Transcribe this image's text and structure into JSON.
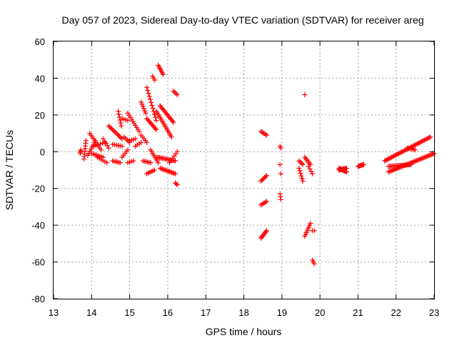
{
  "chart_data": {
    "type": "scatter",
    "title": "Day 057 of 2023, Sidereal Day-to-day VTEC variation (SDTVAR) for receiver areg",
    "xlabel": "GPS time / hours",
    "ylabel": "SDTVAR / TECUs",
    "xlim": [
      13,
      23
    ],
    "ylim": [
      -80,
      60
    ],
    "xticks": [
      "13",
      "14",
      "15",
      "16",
      "17",
      "18",
      "19",
      "20",
      "21",
      "22",
      "23"
    ],
    "yticks": [
      "60",
      "40",
      "20",
      "0",
      "-20",
      "-40",
      "-60",
      "-80"
    ],
    "grid": true,
    "marker": "plus",
    "color": "#ff0000",
    "series": [
      {
        "name": "SDTVAR",
        "segments": [
          {
            "x0": 13.7,
            "y0": -1,
            "x1": 13.72,
            "y1": 1,
            "n": 4
          },
          {
            "x0": 13.8,
            "y0": -4,
            "x1": 13.85,
            "y1": 6,
            "n": 8
          },
          {
            "x0": 13.9,
            "y0": -2,
            "x1": 14.1,
            "y1": 6,
            "n": 8
          },
          {
            "x0": 13.95,
            "y0": 10,
            "x1": 14.25,
            "y1": 1,
            "n": 10
          },
          {
            "x0": 14.0,
            "y0": -1,
            "x1": 14.3,
            "y1": -3,
            "n": 8
          },
          {
            "x0": 14.05,
            "y0": 3,
            "x1": 14.35,
            "y1": 5,
            "n": 6
          },
          {
            "x0": 14.15,
            "y0": -3,
            "x1": 14.4,
            "y1": -6,
            "n": 6
          },
          {
            "x0": 14.3,
            "y0": 7,
            "x1": 14.45,
            "y1": 2,
            "n": 5
          },
          {
            "x0": 14.45,
            "y0": 14,
            "x1": 14.8,
            "y1": 7,
            "n": 12
          },
          {
            "x0": 14.55,
            "y0": -5,
            "x1": 14.75,
            "y1": -6,
            "n": 6
          },
          {
            "x0": 14.55,
            "y0": 4,
            "x1": 14.8,
            "y1": 3,
            "n": 6
          },
          {
            "x0": 14.7,
            "y0": 22,
            "x1": 14.78,
            "y1": 14,
            "n": 6
          },
          {
            "x0": 14.8,
            "y0": -3,
            "x1": 14.95,
            "y1": 1,
            "n": 5
          },
          {
            "x0": 14.8,
            "y0": 18,
            "x1": 14.95,
            "y1": 17,
            "n": 4
          },
          {
            "x0": 14.85,
            "y0": 8,
            "x1": 15.0,
            "y1": 5,
            "n": 5
          },
          {
            "x0": 14.95,
            "y0": -6,
            "x1": 15.1,
            "y1": -5,
            "n": 4
          },
          {
            "x0": 14.95,
            "y0": 21,
            "x1": 15.25,
            "y1": 11,
            "n": 10
          },
          {
            "x0": 15.0,
            "y0": 6,
            "x1": 15.15,
            "y1": 7,
            "n": 4
          },
          {
            "x0": 15.15,
            "y0": 3,
            "x1": 15.3,
            "y1": 5,
            "n": 4
          },
          {
            "x0": 15.3,
            "y0": 27,
            "x1": 15.42,
            "y1": 21,
            "n": 6
          },
          {
            "x0": 15.3,
            "y0": 9,
            "x1": 15.45,
            "y1": 5,
            "n": 5
          },
          {
            "x0": 15.35,
            "y0": -5,
            "x1": 15.55,
            "y1": -6,
            "n": 6
          },
          {
            "x0": 15.45,
            "y0": 35,
            "x1": 15.7,
            "y1": 17,
            "n": 12
          },
          {
            "x0": 15.45,
            "y0": 18,
            "x1": 15.7,
            "y1": 12,
            "n": 10
          },
          {
            "x0": 15.45,
            "y0": -12,
            "x1": 15.65,
            "y1": -10,
            "n": 6
          },
          {
            "x0": 15.55,
            "y0": 1,
            "x1": 15.75,
            "y1": -6,
            "n": 8
          },
          {
            "x0": 15.6,
            "y0": 41,
            "x1": 15.66,
            "y1": 39,
            "n": 3
          },
          {
            "x0": 15.7,
            "y0": 22,
            "x1": 16.1,
            "y1": 8,
            "n": 16
          },
          {
            "x0": 15.72,
            "y0": -3,
            "x1": 16.2,
            "y1": -5,
            "n": 16
          },
          {
            "x0": 15.75,
            "y0": 47,
            "x1": 15.88,
            "y1": 42,
            "n": 7
          },
          {
            "x0": 15.8,
            "y0": 25,
            "x1": 16.15,
            "y1": 16,
            "n": 14
          },
          {
            "x0": 15.8,
            "y0": -9,
            "x1": 16.2,
            "y1": -12,
            "n": 14
          },
          {
            "x0": 16.05,
            "y0": -6,
            "x1": 16.25,
            "y1": 0,
            "n": 6
          },
          {
            "x0": 16.15,
            "y0": 33,
            "x1": 16.25,
            "y1": 31,
            "n": 4
          },
          {
            "x0": 16.2,
            "y0": -17,
            "x1": 16.25,
            "y1": -18,
            "n": 3
          },
          {
            "x0": 18.45,
            "y0": 11,
            "x1": 18.6,
            "y1": 9,
            "n": 6
          },
          {
            "x0": 18.45,
            "y0": -16,
            "x1": 18.6,
            "y1": -13,
            "n": 6
          },
          {
            "x0": 18.45,
            "y0": -29,
            "x1": 18.6,
            "y1": -27,
            "n": 5
          },
          {
            "x0": 18.45,
            "y0": -47,
            "x1": 18.6,
            "y1": -43,
            "n": 8
          },
          {
            "x0": 18.95,
            "y0": 3,
            "x1": 18.97,
            "y1": 2,
            "n": 2
          },
          {
            "x0": 18.95,
            "y0": -7,
            "x1": 18.97,
            "y1": -12,
            "n": 2
          },
          {
            "x0": 18.95,
            "y0": -23,
            "x1": 18.97,
            "y1": -26,
            "n": 3
          },
          {
            "x0": 19.45,
            "y0": -5,
            "x1": 19.55,
            "y1": -7,
            "n": 4
          },
          {
            "x0": 19.45,
            "y0": -9,
            "x1": 19.55,
            "y1": -16,
            "n": 6
          },
          {
            "x0": 19.6,
            "y0": 31,
            "x1": 19.6,
            "y1": 31,
            "n": 1
          },
          {
            "x0": 19.6,
            "y0": -3,
            "x1": 19.75,
            "y1": -7,
            "n": 6
          },
          {
            "x0": 19.6,
            "y0": -46,
            "x1": 19.75,
            "y1": -39,
            "n": 8
          },
          {
            "x0": 19.7,
            "y0": -8,
            "x1": 19.8,
            "y1": -12,
            "n": 4
          },
          {
            "x0": 19.8,
            "y0": -43,
            "x1": 19.85,
            "y1": -43,
            "n": 2
          },
          {
            "x0": 19.8,
            "y0": -59,
            "x1": 19.85,
            "y1": -61,
            "n": 3
          },
          {
            "x0": 20.5,
            "y0": -9,
            "x1": 20.7,
            "y1": -11,
            "n": 10
          },
          {
            "x0": 20.5,
            "y0": -10,
            "x1": 20.7,
            "y1": -9,
            "n": 10
          },
          {
            "x0": 21.0,
            "y0": -8,
            "x1": 21.15,
            "y1": -7,
            "n": 8
          },
          {
            "x0": 21.7,
            "y0": -5,
            "x1": 22.9,
            "y1": 8,
            "n": 40
          },
          {
            "x0": 21.8,
            "y0": -11,
            "x1": 23.0,
            "y1": -1,
            "n": 40
          },
          {
            "x0": 21.8,
            "y0": -8,
            "x1": 22.4,
            "y1": -7,
            "n": 20
          },
          {
            "x0": 22.3,
            "y0": 2,
            "x1": 22.5,
            "y1": 1,
            "n": 6
          }
        ]
      }
    ]
  }
}
